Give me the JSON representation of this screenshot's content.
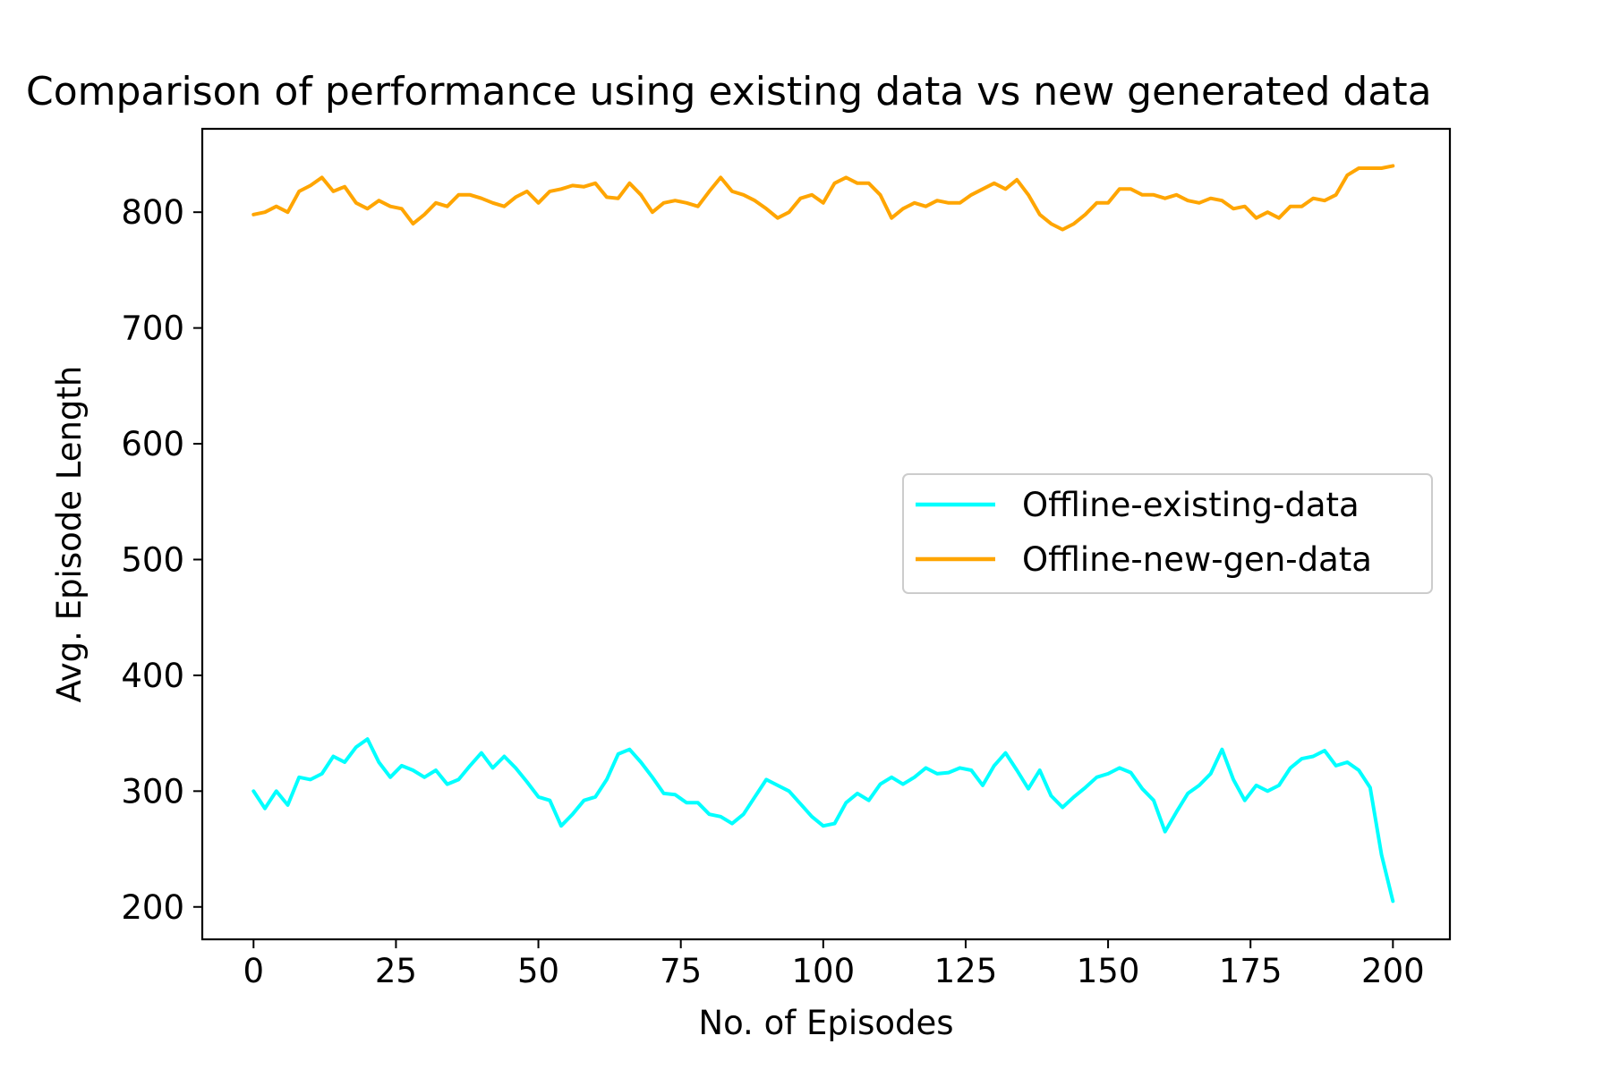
{
  "chart_data": {
    "type": "line",
    "title": "Comparison of performance using existing data vs new generated data",
    "xlabel": "No. of Episodes",
    "ylabel": "Avg. Episode Length",
    "xlim": [
      -9,
      210
    ],
    "ylim": [
      172,
      872
    ],
    "xticks": [
      0,
      25,
      50,
      75,
      100,
      125,
      150,
      175,
      200
    ],
    "yticks": [
      200,
      300,
      400,
      500,
      600,
      700,
      800
    ],
    "grid": false,
    "legend_position": "center-right",
    "series": [
      {
        "name": "Offline-existing-data",
        "color": "#00FFFF",
        "x": [
          0,
          2,
          4,
          6,
          8,
          10,
          12,
          14,
          16,
          18,
          20,
          22,
          24,
          26,
          28,
          30,
          32,
          34,
          36,
          38,
          40,
          42,
          44,
          46,
          48,
          50,
          52,
          54,
          56,
          58,
          60,
          62,
          64,
          66,
          68,
          70,
          72,
          74,
          76,
          78,
          80,
          82,
          84,
          86,
          88,
          90,
          92,
          94,
          96,
          98,
          100,
          102,
          104,
          106,
          108,
          110,
          112,
          114,
          116,
          118,
          120,
          122,
          124,
          126,
          128,
          130,
          132,
          134,
          136,
          138,
          140,
          142,
          144,
          146,
          148,
          150,
          152,
          154,
          156,
          158,
          160,
          162,
          164,
          166,
          168,
          170,
          172,
          174,
          176,
          178,
          180,
          182,
          184,
          186,
          188,
          190,
          192,
          194,
          196,
          198,
          200
        ],
        "values": [
          300,
          285,
          300,
          288,
          312,
          310,
          315,
          330,
          325,
          338,
          345,
          325,
          312,
          322,
          318,
          312,
          318,
          306,
          310,
          322,
          333,
          320,
          330,
          320,
          308,
          295,
          292,
          270,
          280,
          292,
          295,
          310,
          332,
          336,
          325,
          312,
          298,
          297,
          290,
          290,
          280,
          278,
          272,
          280,
          295,
          310,
          305,
          300,
          289,
          278,
          270,
          272,
          290,
          298,
          292,
          306,
          312,
          306,
          312,
          320,
          315,
          316,
          320,
          318,
          305,
          322,
          333,
          318,
          302,
          318,
          296,
          286,
          295,
          303,
          312,
          315,
          320,
          316,
          302,
          292,
          265,
          282,
          298,
          305,
          315,
          336,
          310,
          292,
          305,
          300,
          305,
          320,
          328,
          330,
          335,
          322,
          325,
          318,
          303,
          245,
          205
        ]
      },
      {
        "name": "Offline-new-gen-data",
        "color": "#FFA500",
        "x": [
          0,
          2,
          4,
          6,
          8,
          10,
          12,
          14,
          16,
          18,
          20,
          22,
          24,
          26,
          28,
          30,
          32,
          34,
          36,
          38,
          40,
          42,
          44,
          46,
          48,
          50,
          52,
          54,
          56,
          58,
          60,
          62,
          64,
          66,
          68,
          70,
          72,
          74,
          76,
          78,
          80,
          82,
          84,
          86,
          88,
          90,
          92,
          94,
          96,
          98,
          100,
          102,
          104,
          106,
          108,
          110,
          112,
          114,
          116,
          118,
          120,
          122,
          124,
          126,
          128,
          130,
          132,
          134,
          136,
          138,
          140,
          142,
          144,
          146,
          148,
          150,
          152,
          154,
          156,
          158,
          160,
          162,
          164,
          166,
          168,
          170,
          172,
          174,
          176,
          178,
          180,
          182,
          184,
          186,
          188,
          190,
          192,
          194,
          196,
          198,
          200
        ],
        "values": [
          798,
          800,
          805,
          800,
          818,
          823,
          830,
          818,
          822,
          808,
          803,
          810,
          805,
          803,
          790,
          798,
          808,
          805,
          815,
          815,
          812,
          808,
          805,
          813,
          818,
          808,
          818,
          820,
          823,
          822,
          825,
          813,
          812,
          825,
          815,
          800,
          808,
          810,
          808,
          805,
          818,
          830,
          818,
          815,
          810,
          803,
          795,
          800,
          812,
          815,
          808,
          825,
          830,
          825,
          825,
          815,
          795,
          803,
          808,
          805,
          810,
          808,
          808,
          815,
          820,
          825,
          820,
          828,
          815,
          798,
          790,
          785,
          790,
          798,
          808,
          808,
          820,
          820,
          815,
          815,
          812,
          815,
          810,
          808,
          812,
          810,
          803,
          805,
          795,
          800,
          795,
          805,
          805,
          812,
          810,
          815,
          832,
          838,
          838,
          838,
          840
        ]
      }
    ]
  }
}
